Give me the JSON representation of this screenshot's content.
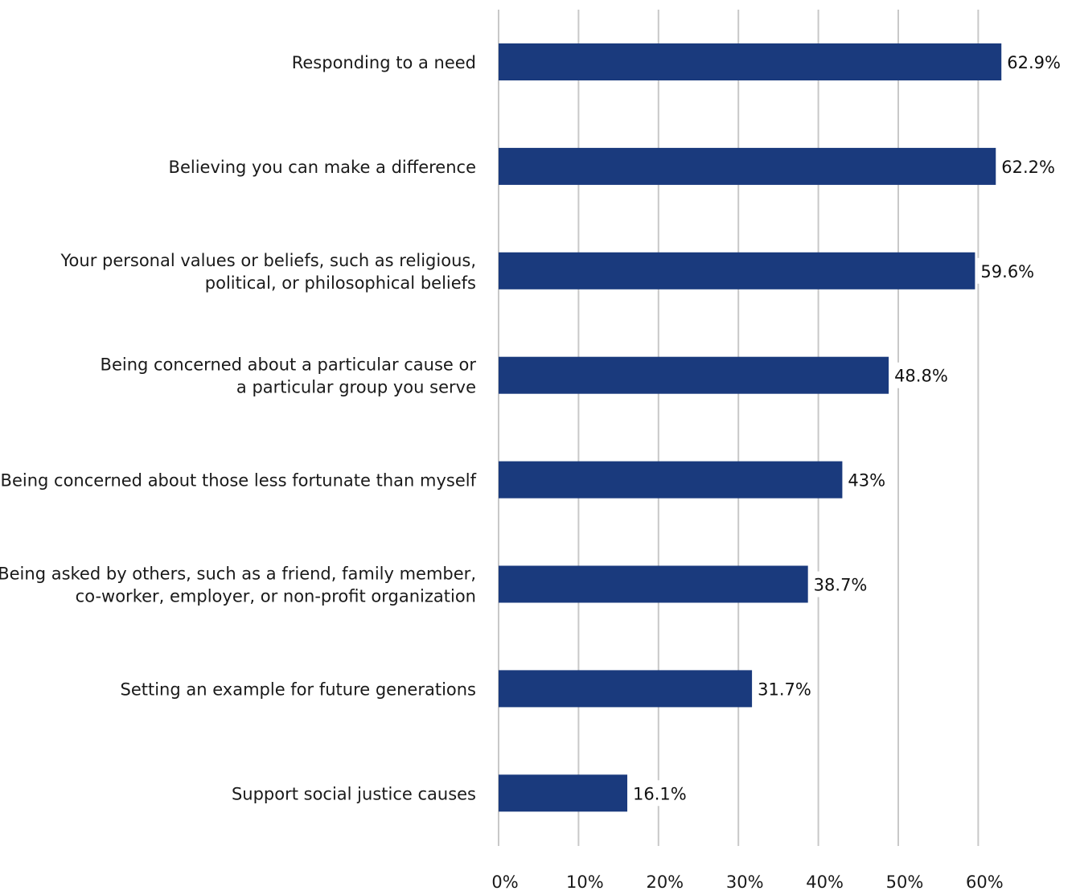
{
  "chart_data": {
    "type": "bar",
    "orientation": "horizontal",
    "categories": [
      "Responding to a need",
      "Believing you can make a difference",
      "Your personal values or beliefs, such as religious, political, or philosophical beliefs",
      "Being concerned about a particular cause or a particular group you serve",
      "Being concerned about those less fortunate than myself",
      "Being asked by others, such as a friend, family member, co-worker, employer, or non-profit organization",
      "Setting an example for future generations",
      "Support social justice causes"
    ],
    "category_lines": [
      [
        "Responding to a need"
      ],
      [
        "Believing you can make a difference"
      ],
      [
        "Your personal values or beliefs, such as religious,",
        "political, or philosophical beliefs"
      ],
      [
        "Being concerned about a particular cause or",
        "a particular group you serve"
      ],
      [
        "Being concerned about those less fortunate than myself"
      ],
      [
        "Being asked by others, such as a friend, family member,",
        "co-worker, employer, or non-profit organization"
      ],
      [
        "Setting an example for future generations"
      ],
      [
        "Support social justice causes"
      ]
    ],
    "values": [
      62.9,
      62.2,
      59.6,
      48.8,
      43,
      38.7,
      31.7,
      16.1
    ],
    "value_labels": [
      "62.9%",
      "62.2%",
      "59.6%",
      "48.8%",
      "43%",
      "38.7%",
      "31.7%",
      "16.1%"
    ],
    "x_ticks": [
      0,
      10,
      20,
      30,
      40,
      50,
      60
    ],
    "x_tick_labels": [
      "0%",
      "10%",
      "20%",
      "30%",
      "40%",
      "50%",
      "60%"
    ],
    "xlim": [
      0,
      60
    ],
    "title": "",
    "xlabel": "",
    "ylabel": "",
    "grid": true,
    "legend": "none",
    "bar_color": "#1a3a7d",
    "highlight_label_color": "#1a3a7d",
    "label_color": "#111111"
  }
}
